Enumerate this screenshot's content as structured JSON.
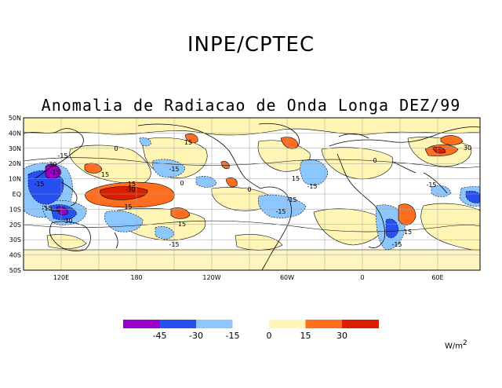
{
  "header": {
    "title": "INPE/CPTEC",
    "subtitle": "Anomalia de Radiacao de Onda Longa DEZ/99"
  },
  "map": {
    "lat_labels": [
      "50N",
      "40N",
      "30N",
      "20N",
      "10N",
      "EQ",
      "10S",
      "20S",
      "30S",
      "40S",
      "50S"
    ],
    "lon_labels": [
      "120E",
      "180",
      "120W",
      "60W",
      "0",
      "60E"
    ],
    "contour_labels": [
      "-15",
      "-30",
      "-15",
      "15",
      "-15",
      "15",
      "0",
      "-15",
      "-15",
      "-30",
      "15",
      "-30",
      "-15",
      "15",
      "0",
      "-15",
      "-15",
      "-15",
      "0",
      "15",
      "15",
      "-15",
      "-15",
      "0",
      "-15",
      "30"
    ]
  },
  "legend": {
    "colors": [
      "#9b00c8",
      "#2850f0",
      "#8cc8ff",
      "#ffffff",
      "#fff5b4",
      "#ff6e1e",
      "#dc1e00"
    ],
    "labels": [
      "-45",
      "-30",
      "-15",
      "0",
      "15",
      "30"
    ],
    "units": "W/m",
    "units_exp": "2"
  },
  "palette": {
    "neg15": "#8cc8ff",
    "neg30": "#2850f0",
    "neg45": "#9b00c8",
    "pos15": "#fff5b4",
    "pos30": "#ff6e1e",
    "pos45": "#dc1e00"
  }
}
